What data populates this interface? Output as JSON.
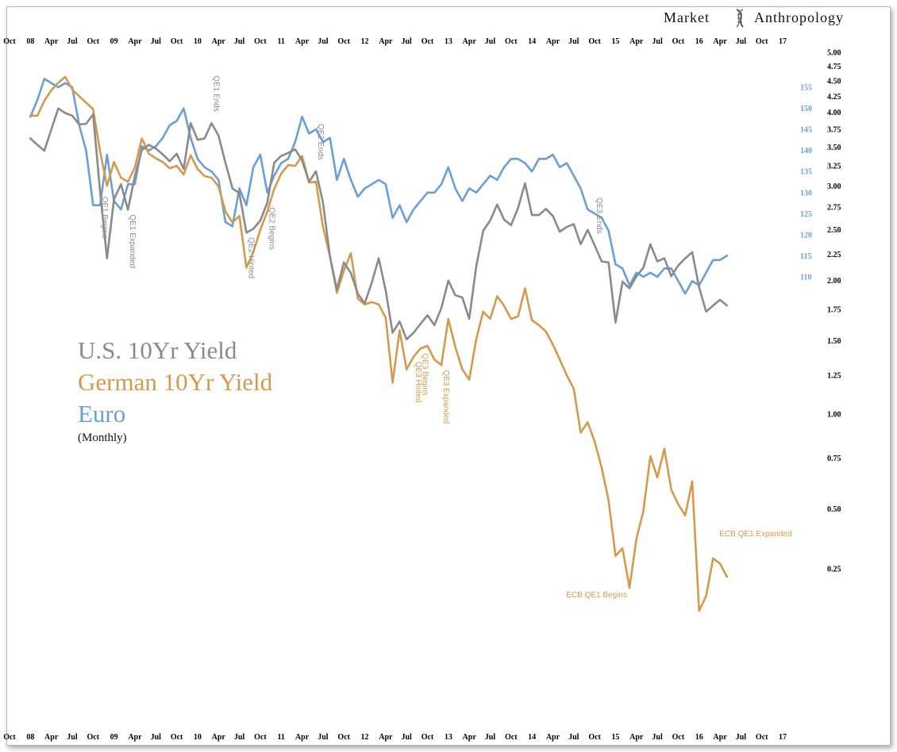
{
  "brand": {
    "left": "Market",
    "right": "Anthropology"
  },
  "colors": {
    "us": "#8a8a8a",
    "de": "#d49a4c",
    "eur": "#6a9fd6"
  },
  "chart_data": {
    "type": "line",
    "legend": [
      {
        "label": "U.S. 10Yr Yield",
        "color": "#8a8a8a"
      },
      {
        "label": "German 10Yr Yield",
        "color": "#d49a4c"
      },
      {
        "label": "Euro",
        "color": "#6a9fd6"
      }
    ],
    "legend_note": "(Monthly)",
    "x_ticks": [
      "Oct",
      "08",
      "Apr",
      "Jul",
      "Oct",
      "09",
      "Apr",
      "Jul",
      "Oct",
      "10",
      "Apr",
      "Jul",
      "Oct",
      "11",
      "Apr",
      "Jul",
      "Oct",
      "12",
      "Apr",
      "Jul",
      "Oct",
      "13",
      "Apr",
      "Jul",
      "Oct",
      "14",
      "Apr",
      "Jul",
      "Oct",
      "15",
      "Apr",
      "Jul",
      "Oct",
      "16",
      "Apr",
      "Jul",
      "Oct",
      "17"
    ],
    "x_range": [
      "2007-10",
      "2017-10"
    ],
    "y_yield_scale": "log",
    "y_yield_ticks": [
      "5.00",
      "4.75",
      "4.50",
      "4.25",
      "4.00",
      "3.75",
      "3.50",
      "3.25",
      "3.00",
      "2.75",
      "2.50",
      "2.25",
      "2.00",
      "1.75",
      "1.50",
      "1.25",
      "1.00",
      "0.75",
      "0.50",
      "0.25"
    ],
    "y_euro_ticks": [
      "155",
      "150",
      "145",
      "140",
      "135",
      "130",
      "125",
      "120",
      "115",
      "110"
    ],
    "series": [
      {
        "name": "U.S. 10Yr Yield",
        "axis": "yield",
        "x": [
          "2008-01",
          "2008-02",
          "2008-03",
          "2008-04",
          "2008-05",
          "2008-06",
          "2008-07",
          "2008-08",
          "2008-09",
          "2008-10",
          "2008-11",
          "2008-12",
          "2009-01",
          "2009-02",
          "2009-03",
          "2009-04",
          "2009-05",
          "2009-06",
          "2009-07",
          "2009-08",
          "2009-09",
          "2009-10",
          "2009-11",
          "2009-12",
          "2010-01",
          "2010-02",
          "2010-03",
          "2010-04",
          "2010-05",
          "2010-06",
          "2010-07",
          "2010-08",
          "2010-09",
          "2010-10",
          "2010-11",
          "2010-12",
          "2011-01",
          "2011-02",
          "2011-03",
          "2011-04",
          "2011-05",
          "2011-06",
          "2011-07",
          "2011-08",
          "2011-09",
          "2011-10",
          "2011-11",
          "2011-12",
          "2012-01",
          "2012-02",
          "2012-03",
          "2012-04",
          "2012-05",
          "2012-06",
          "2012-07",
          "2012-08",
          "2012-09",
          "2012-10",
          "2012-11",
          "2012-12",
          "2013-01",
          "2013-02",
          "2013-03",
          "2013-04",
          "2013-05",
          "2013-06",
          "2013-07",
          "2013-08",
          "2013-09",
          "2013-10",
          "2013-11",
          "2013-12",
          "2014-01",
          "2014-02",
          "2014-03",
          "2014-04",
          "2014-05",
          "2014-06",
          "2014-07",
          "2014-08",
          "2014-09",
          "2014-10",
          "2014-11",
          "2014-12",
          "2015-01",
          "2015-02",
          "2015-03",
          "2015-04",
          "2015-05",
          "2015-06",
          "2015-07",
          "2015-08",
          "2015-09",
          "2015-10",
          "2015-11",
          "2015-12",
          "2016-01",
          "2016-02",
          "2016-03",
          "2016-04",
          "2016-05"
        ],
        "values": [
          3.62,
          3.53,
          3.45,
          3.75,
          4.06,
          3.99,
          3.95,
          3.82,
          3.83,
          3.97,
          2.93,
          2.21,
          2.84,
          3.02,
          2.72,
          3.12,
          3.46,
          3.53,
          3.48,
          3.4,
          3.31,
          3.41,
          3.21,
          3.84,
          3.6,
          3.62,
          3.84,
          3.66,
          3.29,
          2.97,
          2.91,
          2.47,
          2.51,
          2.6,
          2.8,
          3.29,
          3.38,
          3.42,
          3.47,
          3.32,
          3.05,
          3.18,
          2.8,
          2.23,
          1.92,
          2.17,
          2.07,
          1.88,
          1.8,
          1.98,
          2.21,
          1.91,
          1.56,
          1.65,
          1.51,
          1.56,
          1.63,
          1.7,
          1.62,
          1.76,
          2.0,
          1.87,
          1.85,
          1.67,
          2.13,
          2.49,
          2.6,
          2.78,
          2.61,
          2.55,
          2.74,
          3.03,
          2.66,
          2.66,
          2.73,
          2.65,
          2.48,
          2.53,
          2.56,
          2.35,
          2.5,
          2.34,
          2.18,
          2.17,
          1.64,
          1.99,
          1.93,
          2.04,
          2.12,
          2.35,
          2.18,
          2.21,
          2.04,
          2.14,
          2.21,
          2.27,
          1.94,
          1.73,
          1.78,
          1.83,
          1.78
        ]
      },
      {
        "name": "German 10Yr Yield",
        "axis": "yield",
        "x": [
          "2008-01",
          "2008-02",
          "2008-03",
          "2008-04",
          "2008-05",
          "2008-06",
          "2008-07",
          "2008-08",
          "2008-09",
          "2008-10",
          "2008-11",
          "2008-12",
          "2009-01",
          "2009-02",
          "2009-03",
          "2009-04",
          "2009-05",
          "2009-06",
          "2009-07",
          "2009-08",
          "2009-09",
          "2009-10",
          "2009-11",
          "2009-12",
          "2010-01",
          "2010-02",
          "2010-03",
          "2010-04",
          "2010-05",
          "2010-06",
          "2010-07",
          "2010-08",
          "2010-09",
          "2010-10",
          "2010-11",
          "2010-12",
          "2011-01",
          "2011-02",
          "2011-03",
          "2011-04",
          "2011-05",
          "2011-06",
          "2011-07",
          "2011-08",
          "2011-09",
          "2011-10",
          "2011-11",
          "2011-12",
          "2012-01",
          "2012-02",
          "2012-03",
          "2012-04",
          "2012-05",
          "2012-06",
          "2012-07",
          "2012-08",
          "2012-09",
          "2012-10",
          "2012-11",
          "2012-12",
          "2013-01",
          "2013-02",
          "2013-03",
          "2013-04",
          "2013-05",
          "2013-06",
          "2013-07",
          "2013-08",
          "2013-09",
          "2013-10",
          "2013-11",
          "2013-12",
          "2014-01",
          "2014-02",
          "2014-03",
          "2014-04",
          "2014-05",
          "2014-06",
          "2014-07",
          "2014-08",
          "2014-09",
          "2014-10",
          "2014-11",
          "2014-12",
          "2015-01",
          "2015-02",
          "2015-03",
          "2015-04",
          "2015-05",
          "2015-06",
          "2015-07",
          "2015-08",
          "2015-09",
          "2015-10",
          "2015-11",
          "2015-12",
          "2016-01",
          "2016-02",
          "2016-03",
          "2016-04",
          "2016-05"
        ],
        "values": [
          3.95,
          3.95,
          4.18,
          4.35,
          4.47,
          4.57,
          4.36,
          4.25,
          4.15,
          4.05,
          3.44,
          3.0,
          3.3,
          3.1,
          3.05,
          3.23,
          3.62,
          3.41,
          3.35,
          3.3,
          3.22,
          3.25,
          3.14,
          3.39,
          3.21,
          3.12,
          3.1,
          2.99,
          2.7,
          2.58,
          2.65,
          2.12,
          2.27,
          2.5,
          2.7,
          2.96,
          3.15,
          3.26,
          3.25,
          3.38,
          3.04,
          3.05,
          2.53,
          2.23,
          1.89,
          2.09,
          2.26,
          1.84,
          1.79,
          1.81,
          1.79,
          1.68,
          1.2,
          1.58,
          1.29,
          1.38,
          1.44,
          1.46,
          1.36,
          1.32,
          1.67,
          1.45,
          1.29,
          1.22,
          1.51,
          1.73,
          1.67,
          1.86,
          1.78,
          1.67,
          1.69,
          1.93,
          1.66,
          1.62,
          1.57,
          1.47,
          1.36,
          1.25,
          1.16,
          0.89,
          0.95,
          0.84,
          0.7,
          0.54,
          0.3,
          0.33,
          0.18,
          0.37,
          0.49,
          0.76,
          0.65,
          0.8,
          0.59,
          0.52,
          0.47,
          0.63,
          0.1,
          0.15,
          0.29,
          0.27,
          0.22
        ]
      },
      {
        "name": "Euro",
        "axis": "euro",
        "x": [
          "2008-01",
          "2008-02",
          "2008-03",
          "2008-04",
          "2008-05",
          "2008-06",
          "2008-07",
          "2008-08",
          "2008-09",
          "2008-10",
          "2008-11",
          "2008-12",
          "2009-01",
          "2009-02",
          "2009-03",
          "2009-04",
          "2009-05",
          "2009-06",
          "2009-07",
          "2009-08",
          "2009-09",
          "2009-10",
          "2009-11",
          "2009-12",
          "2010-01",
          "2010-02",
          "2010-03",
          "2010-04",
          "2010-05",
          "2010-06",
          "2010-07",
          "2010-08",
          "2010-09",
          "2010-10",
          "2010-11",
          "2010-12",
          "2011-01",
          "2011-02",
          "2011-03",
          "2011-04",
          "2011-05",
          "2011-06",
          "2011-07",
          "2011-08",
          "2011-09",
          "2011-10",
          "2011-11",
          "2011-12",
          "2012-01",
          "2012-02",
          "2012-03",
          "2012-04",
          "2012-05",
          "2012-06",
          "2012-07",
          "2012-08",
          "2012-09",
          "2012-10",
          "2012-11",
          "2012-12",
          "2013-01",
          "2013-02",
          "2013-03",
          "2013-04",
          "2013-05",
          "2013-06",
          "2013-07",
          "2013-08",
          "2013-09",
          "2013-10",
          "2013-11",
          "2013-12",
          "2014-01",
          "2014-02",
          "2014-03",
          "2014-04",
          "2014-05",
          "2014-06",
          "2014-07",
          "2014-08",
          "2014-09",
          "2014-10",
          "2014-11",
          "2014-12",
          "2015-01",
          "2015-02",
          "2015-03",
          "2015-04",
          "2015-05",
          "2015-06",
          "2015-07",
          "2015-08",
          "2015-09",
          "2015-10",
          "2015-11",
          "2015-12",
          "2016-01",
          "2016-02",
          "2016-03",
          "2016-04",
          "2016-05"
        ],
        "values": [
          148,
          152,
          157,
          156,
          155,
          156,
          155,
          146,
          140,
          127,
          127,
          139,
          128,
          126,
          132,
          132,
          141,
          140,
          141,
          143,
          146,
          147,
          150,
          143,
          138,
          136,
          135,
          133,
          123,
          122,
          131,
          127,
          136,
          139,
          130,
          134,
          137,
          138,
          142,
          148,
          144,
          145,
          142,
          143,
          133,
          138,
          133,
          129,
          131,
          132,
          133,
          132,
          124,
          127,
          123,
          126,
          128,
          130,
          130,
          132,
          136,
          131,
          128,
          131,
          130,
          132,
          134,
          133,
          136,
          138,
          138,
          137,
          135,
          138,
          138,
          139,
          136,
          137,
          134,
          131,
          126,
          125,
          124,
          121,
          113,
          112,
          108,
          111,
          110,
          111,
          110,
          112,
          112,
          109,
          106,
          109,
          108,
          111,
          114,
          114,
          115
        ]
      }
    ],
    "annotations": [
      {
        "text": "QE1  Begins",
        "series": "U.S. 10Yr Yield",
        "date": "2008-11"
      },
      {
        "text": "QE1  Expanded",
        "series": "U.S. 10Yr Yield",
        "date": "2009-03"
      },
      {
        "text": "QE1  Ends",
        "series": "U.S. 10Yr Yield",
        "date": "2010-03"
      },
      {
        "text": "QE2  Hinted",
        "series": "U.S. 10Yr Yield",
        "date": "2010-08"
      },
      {
        "text": "QE2  Begins",
        "series": "U.S. 10Yr Yield",
        "date": "2010-11"
      },
      {
        "text": "QE2  Ends",
        "series": "U.S. 10Yr Yield",
        "date": "2011-06"
      },
      {
        "text": "QE3  Hinted",
        "series": "German 10Yr Yield",
        "date": "2012-08"
      },
      {
        "text": "QE3  Begins",
        "series": "German 10Yr Yield",
        "date": "2012-09"
      },
      {
        "text": "QE3  Expanded",
        "series": "German 10Yr Yield",
        "date": "2012-12"
      },
      {
        "text": "QE3  Ends",
        "series": "U.S. 10Yr Yield",
        "date": "2014-10"
      },
      {
        "text": "ECB QE1  Begins",
        "series": "German 10Yr Yield",
        "date": "2015-03"
      },
      {
        "text": "ECB QE1  Expanded",
        "series": "German 10Yr Yield",
        "date": "2016-03"
      }
    ]
  }
}
